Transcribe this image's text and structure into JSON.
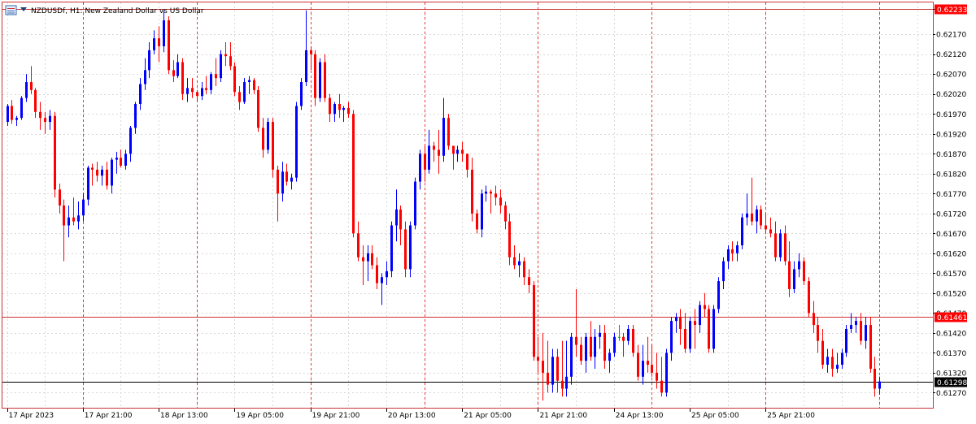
{
  "title": "NZDUSDf, H1:  New Zealand Dollar vs US Dollar",
  "icon": "chart-window-icon",
  "colors": {
    "bull": "#0000ff",
    "bear": "#ff0000",
    "doji": "#00b000",
    "grid": "#d8d8d8",
    "frame": "#cc3333",
    "hline": "#cc3333",
    "price_line": "#000000",
    "separator": "#e53935"
  },
  "chart_data": {
    "type": "candlestick",
    "symbol": "NZDUSDf",
    "timeframe": "H1",
    "ylim": [
      0.6123,
      0.6225
    ],
    "y_ticks": [
      "0.62233",
      "0.62170",
      "0.62120",
      "0.62070",
      "0.62020",
      "0.61970",
      "0.61920",
      "0.61870",
      "0.61820",
      "0.61770",
      "0.61720",
      "0.61670",
      "0.61620",
      "0.61570",
      "0.61520",
      "0.61470",
      "0.61420",
      "0.61370",
      "0.61320",
      "0.61270"
    ],
    "x_ticks": [
      "17 Apr 2023",
      "17 Apr 21:00",
      "18 Apr 13:00",
      "19 Apr 05:00",
      "19 Apr 21:00",
      "20 Apr 13:00",
      "21 Apr 05:00",
      "21 Apr 21:00",
      "24 Apr 13:00",
      "25 Apr 05:00",
      "25 Apr 21:00"
    ],
    "x_tick_bar_index": [
      0,
      16,
      32,
      48,
      64,
      80,
      96,
      112,
      128,
      144,
      160
    ],
    "day_separator_bar_index": [
      16,
      40,
      64,
      88,
      112,
      136,
      160,
      184
    ],
    "horizontal_levels": [
      {
        "label": "0.62233",
        "price": 0.62233,
        "style": "red"
      },
      {
        "label": "0.61461",
        "price": 0.61461,
        "style": "red"
      },
      {
        "label": "0.61298",
        "price": 0.61298,
        "style": "current"
      }
    ],
    "candles": [
      [
        0.6195,
        0.61995,
        0.6194,
        0.6199
      ],
      [
        0.6199,
        0.62005,
        0.61945,
        0.61955
      ],
      [
        0.61955,
        0.61965,
        0.6194,
        0.6196
      ],
      [
        0.6196,
        0.62015,
        0.61955,
        0.6201
      ],
      [
        0.6201,
        0.6207,
        0.62,
        0.6205
      ],
      [
        0.6205,
        0.6209,
        0.6202,
        0.6203
      ],
      [
        0.6203,
        0.62035,
        0.6196,
        0.61975
      ],
      [
        0.61975,
        0.62,
        0.6193,
        0.6196
      ],
      [
        0.6196,
        0.61975,
        0.6192,
        0.6195
      ],
      [
        0.6195,
        0.6198,
        0.6193,
        0.61965
      ],
      [
        0.61965,
        0.61975,
        0.6176,
        0.6178
      ],
      [
        0.6178,
        0.61795,
        0.6172,
        0.6174
      ],
      [
        0.6174,
        0.61755,
        0.616,
        0.6169
      ],
      [
        0.6169,
        0.6174,
        0.6166,
        0.6171
      ],
      [
        0.6171,
        0.6176,
        0.6169,
        0.617
      ],
      [
        0.617,
        0.6175,
        0.6168,
        0.61715
      ],
      [
        0.61715,
        0.6177,
        0.617,
        0.61755
      ],
      [
        0.61755,
        0.6184,
        0.6174,
        0.61835
      ],
      [
        0.61835,
        0.61845,
        0.6179,
        0.6183
      ],
      [
        0.6183,
        0.6185,
        0.618,
        0.61815
      ],
      [
        0.61815,
        0.6184,
        0.6179,
        0.6183
      ],
      [
        0.6183,
        0.6185,
        0.6178,
        0.6179
      ],
      [
        0.6179,
        0.6186,
        0.6177,
        0.61855
      ],
      [
        0.61855,
        0.61875,
        0.6182,
        0.6186
      ],
      [
        0.6186,
        0.6188,
        0.61835,
        0.6184
      ],
      [
        0.6184,
        0.6188,
        0.6183,
        0.6187
      ],
      [
        0.6187,
        0.6194,
        0.6185,
        0.61935
      ],
      [
        0.61935,
        0.62,
        0.6192,
        0.61995
      ],
      [
        0.61995,
        0.6206,
        0.6198,
        0.62045
      ],
      [
        0.62045,
        0.6211,
        0.6203,
        0.6208
      ],
      [
        0.6208,
        0.6215,
        0.6206,
        0.6213
      ],
      [
        0.6213,
        0.6218,
        0.6212,
        0.6216
      ],
      [
        0.6216,
        0.6219,
        0.621,
        0.6214
      ],
      [
        0.6214,
        0.6223,
        0.62125,
        0.62205
      ],
      [
        0.62205,
        0.62215,
        0.6207,
        0.6208
      ],
      [
        0.6208,
        0.62105,
        0.6205,
        0.62065
      ],
      [
        0.62065,
        0.6212,
        0.6206,
        0.621
      ],
      [
        0.621,
        0.6211,
        0.62005,
        0.6202
      ],
      [
        0.6202,
        0.6206,
        0.62,
        0.62035
      ],
      [
        0.62035,
        0.6206,
        0.6201,
        0.62025
      ],
      [
        0.62025,
        0.6203,
        0.62,
        0.62015
      ],
      [
        0.62015,
        0.6205,
        0.62005,
        0.62035
      ],
      [
        0.62035,
        0.62065,
        0.6202,
        0.6203
      ],
      [
        0.6203,
        0.62075,
        0.6202,
        0.6207
      ],
      [
        0.6207,
        0.6211,
        0.6204,
        0.6206
      ],
      [
        0.6206,
        0.6213,
        0.6205,
        0.6212
      ],
      [
        0.6212,
        0.6215,
        0.6209,
        0.62115
      ],
      [
        0.62115,
        0.6215,
        0.6208,
        0.6209
      ],
      [
        0.6209,
        0.621,
        0.62015,
        0.62025
      ],
      [
        0.62025,
        0.6204,
        0.6198,
        0.62
      ],
      [
        0.62,
        0.6206,
        0.61995,
        0.6205
      ],
      [
        0.6205,
        0.62065,
        0.6202,
        0.62055
      ],
      [
        0.62055,
        0.6206,
        0.6202,
        0.6203
      ],
      [
        0.6203,
        0.6204,
        0.61925,
        0.61935
      ],
      [
        0.61935,
        0.6196,
        0.6186,
        0.6188
      ],
      [
        0.6188,
        0.6196,
        0.6187,
        0.6195
      ],
      [
        0.6195,
        0.6196,
        0.6181,
        0.6183
      ],
      [
        0.6183,
        0.6184,
        0.617,
        0.6177
      ],
      [
        0.6177,
        0.6185,
        0.6175,
        0.61825
      ],
      [
        0.61825,
        0.61845,
        0.6179,
        0.618
      ],
      [
        0.618,
        0.6182,
        0.6178,
        0.6181
      ],
      [
        0.6181,
        0.62,
        0.618,
        0.6199
      ],
      [
        0.6199,
        0.6206,
        0.6198,
        0.6205
      ],
      [
        0.6205,
        0.6223,
        0.6204,
        0.6213
      ],
      [
        0.6213,
        0.6214,
        0.6208,
        0.6212
      ],
      [
        0.6212,
        0.6213,
        0.6199,
        0.6201
      ],
      [
        0.6201,
        0.6211,
        0.62,
        0.621
      ],
      [
        0.621,
        0.6212,
        0.62,
        0.6201
      ],
      [
        0.6201,
        0.6202,
        0.6195,
        0.6197
      ],
      [
        0.6197,
        0.62,
        0.6195,
        0.61995
      ],
      [
        0.61995,
        0.6202,
        0.6196,
        0.6198
      ],
      [
        0.6198,
        0.6199,
        0.6195,
        0.61985
      ],
      [
        0.61985,
        0.62,
        0.6196,
        0.6197
      ],
      [
        0.6197,
        0.6198,
        0.6166,
        0.6167
      ],
      [
        0.6167,
        0.617,
        0.616,
        0.6161
      ],
      [
        0.6161,
        0.6164,
        0.6154,
        0.616
      ],
      [
        0.616,
        0.6164,
        0.6155,
        0.6162
      ],
      [
        0.6162,
        0.6164,
        0.6158,
        0.6159
      ],
      [
        0.6159,
        0.6161,
        0.6153,
        0.61545
      ],
      [
        0.61545,
        0.6157,
        0.6149,
        0.6156
      ],
      [
        0.6156,
        0.616,
        0.6154,
        0.61575
      ],
      [
        0.61575,
        0.617,
        0.6156,
        0.6169
      ],
      [
        0.6169,
        0.6178,
        0.6165,
        0.6173
      ],
      [
        0.6173,
        0.6174,
        0.6164,
        0.6168
      ],
      [
        0.6168,
        0.617,
        0.6156,
        0.6158
      ],
      [
        0.6158,
        0.617,
        0.6156,
        0.6169
      ],
      [
        0.6169,
        0.6181,
        0.6168,
        0.618
      ],
      [
        0.618,
        0.6188,
        0.6178,
        0.6187
      ],
      [
        0.6187,
        0.6189,
        0.618,
        0.6183
      ],
      [
        0.6183,
        0.6193,
        0.6182,
        0.6189
      ],
      [
        0.6189,
        0.619,
        0.6185,
        0.6188
      ],
      [
        0.6188,
        0.6193,
        0.6182,
        0.61865
      ],
      [
        0.61865,
        0.6201,
        0.6185,
        0.6196
      ],
      [
        0.6196,
        0.6197,
        0.6188,
        0.6189
      ],
      [
        0.6189,
        0.6189,
        0.6183,
        0.6187
      ],
      [
        0.6187,
        0.6189,
        0.6185,
        0.6188
      ],
      [
        0.6188,
        0.619,
        0.6185,
        0.6187
      ],
      [
        0.6187,
        0.6187,
        0.6181,
        0.6183
      ],
      [
        0.6183,
        0.6186,
        0.617,
        0.6172
      ],
      [
        0.6172,
        0.6173,
        0.6167,
        0.6168
      ],
      [
        0.6168,
        0.6178,
        0.6166,
        0.6177
      ],
      [
        0.6177,
        0.6179,
        0.6175,
        0.61775
      ],
      [
        0.61775,
        0.6178,
        0.6172,
        0.6177
      ],
      [
        0.6177,
        0.6179,
        0.6174,
        0.6176
      ],
      [
        0.6176,
        0.6178,
        0.6172,
        0.6174
      ],
      [
        0.6174,
        0.6175,
        0.6168,
        0.617
      ],
      [
        0.617,
        0.6172,
        0.6159,
        0.6161
      ],
      [
        0.6161,
        0.6164,
        0.6158,
        0.6159
      ],
      [
        0.6159,
        0.6162,
        0.6156,
        0.616
      ],
      [
        0.616,
        0.6161,
        0.6154,
        0.6156
      ],
      [
        0.6156,
        0.6158,
        0.6152,
        0.6154
      ],
      [
        0.6154,
        0.6155,
        0.6135,
        0.6136
      ],
      [
        0.6136,
        0.6141,
        0.6132,
        0.6135
      ],
      [
        0.6135,
        0.6142,
        0.6125,
        0.6132
      ],
      [
        0.6132,
        0.614,
        0.6127,
        0.6129
      ],
      [
        0.6129,
        0.6138,
        0.6127,
        0.6136
      ],
      [
        0.6136,
        0.6138,
        0.6127,
        0.613
      ],
      [
        0.613,
        0.614,
        0.6126,
        0.6128
      ],
      [
        0.6128,
        0.614,
        0.6126,
        0.6131
      ],
      [
        0.6131,
        0.6142,
        0.6129,
        0.6141
      ],
      [
        0.6141,
        0.6153,
        0.6136,
        0.6139
      ],
      [
        0.6139,
        0.6141,
        0.6134,
        0.6135
      ],
      [
        0.6135,
        0.6142,
        0.6132,
        0.6141
      ],
      [
        0.6141,
        0.6145,
        0.6135,
        0.6136
      ],
      [
        0.6136,
        0.6143,
        0.6133,
        0.6141
      ],
      [
        0.6141,
        0.6144,
        0.6138,
        0.6142
      ],
      [
        0.6142,
        0.6144,
        0.6133,
        0.6135
      ],
      [
        0.6135,
        0.6138,
        0.6132,
        0.6137
      ],
      [
        0.6137,
        0.6142,
        0.6136,
        0.6141
      ],
      [
        0.6141,
        0.6144,
        0.614,
        0.6141
      ],
      [
        0.6141,
        0.6142,
        0.6136,
        0.614
      ],
      [
        0.614,
        0.6144,
        0.6139,
        0.6143
      ],
      [
        0.6143,
        0.6144,
        0.6136,
        0.6137
      ],
      [
        0.6137,
        0.6139,
        0.613,
        0.6131
      ],
      [
        0.6131,
        0.6139,
        0.6129,
        0.6135
      ],
      [
        0.6135,
        0.6141,
        0.6132,
        0.6134
      ],
      [
        0.6134,
        0.6139,
        0.6131,
        0.6132
      ],
      [
        0.6132,
        0.6137,
        0.6128,
        0.613
      ],
      [
        0.613,
        0.6136,
        0.6126,
        0.6127
      ],
      [
        0.6127,
        0.6138,
        0.6126,
        0.6137
      ],
      [
        0.6137,
        0.6146,
        0.6135,
        0.6145
      ],
      [
        0.6145,
        0.6147,
        0.6142,
        0.6146
      ],
      [
        0.6146,
        0.6148,
        0.6139,
        0.6143
      ],
      [
        0.6143,
        0.6147,
        0.6137,
        0.6138
      ],
      [
        0.6138,
        0.6146,
        0.6137,
        0.6145
      ],
      [
        0.6145,
        0.6148,
        0.6138,
        0.6144
      ],
      [
        0.6144,
        0.615,
        0.6142,
        0.6149
      ],
      [
        0.6149,
        0.6152,
        0.6146,
        0.6148
      ],
      [
        0.6148,
        0.6149,
        0.6137,
        0.6138
      ],
      [
        0.6138,
        0.6149,
        0.6137,
        0.6148
      ],
      [
        0.6148,
        0.6156,
        0.6147,
        0.6155
      ],
      [
        0.6155,
        0.6161,
        0.6153,
        0.616
      ],
      [
        0.616,
        0.6164,
        0.6158,
        0.6163
      ],
      [
        0.6163,
        0.6165,
        0.616,
        0.6162
      ],
      [
        0.6162,
        0.6165,
        0.616,
        0.6164
      ],
      [
        0.6164,
        0.6172,
        0.6163,
        0.6171
      ],
      [
        0.6171,
        0.6177,
        0.6169,
        0.6172
      ],
      [
        0.6172,
        0.6181,
        0.6169,
        0.617
      ],
      [
        0.617,
        0.6174,
        0.6167,
        0.6173
      ],
      [
        0.6173,
        0.6174,
        0.6168,
        0.6169
      ],
      [
        0.6169,
        0.6172,
        0.6167,
        0.6168
      ],
      [
        0.6168,
        0.6171,
        0.6166,
        0.6167
      ],
      [
        0.6167,
        0.617,
        0.616,
        0.6161
      ],
      [
        0.6161,
        0.6168,
        0.616,
        0.6167
      ],
      [
        0.6167,
        0.6169,
        0.6159,
        0.616
      ],
      [
        0.616,
        0.6165,
        0.6151,
        0.6153
      ],
      [
        0.6153,
        0.616,
        0.6152,
        0.6158
      ],
      [
        0.6158,
        0.6162,
        0.6156,
        0.616
      ],
      [
        0.616,
        0.6161,
        0.6154,
        0.6155
      ],
      [
        0.6155,
        0.6156,
        0.6146,
        0.6147
      ],
      [
        0.6147,
        0.615,
        0.6142,
        0.6144
      ],
      [
        0.6144,
        0.6146,
        0.6137,
        0.614
      ],
      [
        0.614,
        0.6143,
        0.6133,
        0.6134
      ],
      [
        0.6134,
        0.6138,
        0.6132,
        0.6136
      ],
      [
        0.6136,
        0.6138,
        0.6131,
        0.6133
      ],
      [
        0.6133,
        0.6137,
        0.6132,
        0.6134
      ],
      [
        0.6134,
        0.6138,
        0.6133,
        0.6137
      ],
      [
        0.6137,
        0.6144,
        0.6136,
        0.6143
      ],
      [
        0.6143,
        0.6147,
        0.6142,
        0.6144
      ],
      [
        0.6144,
        0.6146,
        0.6142,
        0.6145
      ],
      [
        0.6145,
        0.6147,
        0.6139,
        0.614
      ],
      [
        0.614,
        0.6146,
        0.6138,
        0.6144
      ],
      [
        0.6144,
        0.6146,
        0.6132,
        0.6133
      ],
      [
        0.6133,
        0.6136,
        0.6126,
        0.6128
      ],
      [
        0.6128,
        0.6131,
        0.61265,
        0.61298
      ]
    ]
  }
}
